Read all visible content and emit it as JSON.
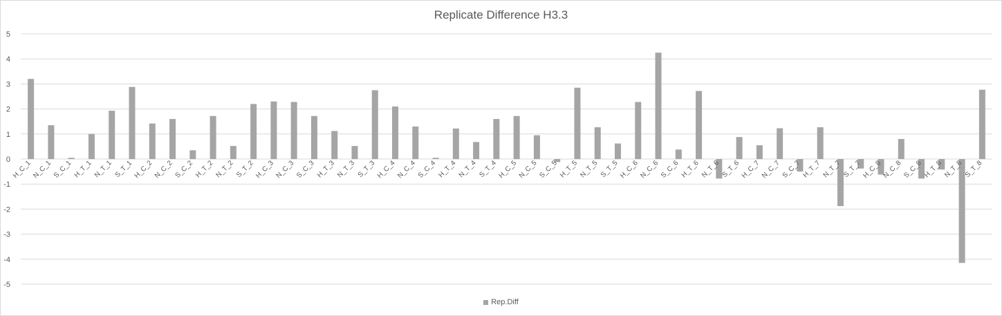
{
  "chart_data": {
    "type": "bar",
    "title": "Replicate Difference H3.3",
    "xlabel": "",
    "ylabel": "",
    "ylim": [
      -5,
      5
    ],
    "yticks": [
      5,
      4,
      3,
      2,
      1,
      0,
      -1,
      -2,
      -3,
      -4,
      -5
    ],
    "grid": true,
    "legend_position": "bottom",
    "color": "#a5a5a5",
    "categories": [
      "H_C_1",
      "N_C_1",
      "S_C_1",
      "H_T_1",
      "N_T_1",
      "S_T_1",
      "H_C_2",
      "N_C_2",
      "S_C_2",
      "H_T_2",
      "N_T_2",
      "S_T_2",
      "H_C_3",
      "N_C_3",
      "S_C_3",
      "H_T_3",
      "N_T_3",
      "S_T_3",
      "H_C_4",
      "N_C_4",
      "S_C_4",
      "H_T_4",
      "N_T_4",
      "S_T_4",
      "H_C_5",
      "N_C_5",
      "S_C_5",
      "H_T_5",
      "N_T_5",
      "S_T_5",
      "H_C_6",
      "N_C_6",
      "S_C_6",
      "H_T_6",
      "N_T_6",
      "S_T_6",
      "H_C_7",
      "N_C_7",
      "S_C_7",
      "H_T_7",
      "N_T_7",
      "S_T_7",
      "H_C_8",
      "N_C_8",
      "S_C_8",
      "H_T_8",
      "N_T_8",
      "S_T_8"
    ],
    "series": [
      {
        "name": "Rep.Diff",
        "values": [
          3.2,
          1.35,
          0.05,
          1.0,
          1.93,
          2.88,
          1.42,
          1.6,
          0.35,
          1.72,
          0.52,
          2.2,
          2.3,
          2.28,
          1.72,
          1.12,
          0.52,
          2.75,
          2.1,
          1.3,
          0.05,
          1.22,
          0.68,
          1.6,
          1.72,
          0.95,
          -0.12,
          2.85,
          1.27,
          0.62,
          2.28,
          4.25,
          0.38,
          2.72,
          -0.78,
          0.88,
          0.55,
          1.23,
          -0.5,
          1.27,
          -1.88,
          -0.38,
          -0.62,
          0.8,
          -0.78,
          -0.42,
          -4.15,
          2.77
        ]
      }
    ]
  }
}
